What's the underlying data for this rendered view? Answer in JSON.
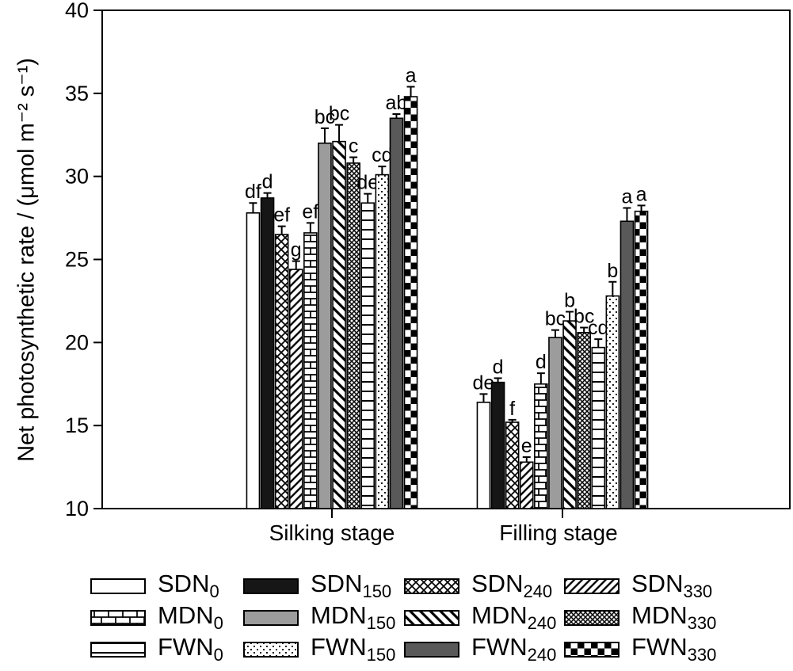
{
  "chart_data": {
    "type": "bar",
    "title": "",
    "xlabel": "",
    "ylabel": "Net photosynthetic rate / (μmol m⁻² s⁻¹)",
    "ylim": [
      10,
      40
    ],
    "yticks": [
      10,
      15,
      20,
      25,
      30,
      35,
      40
    ],
    "grid": false,
    "legend_position": "bottom",
    "groups": [
      "Silking stage",
      "Filling stage"
    ],
    "colors": {
      "black": "#161616",
      "gray": "#9c9c9c",
      "dark_gray": "#595959",
      "stroke": "#000000"
    },
    "series": [
      {
        "name": "SDN",
        "sub": "0",
        "pattern": "white",
        "values": [
          27.8,
          16.4
        ],
        "errors": [
          0.6,
          0.5
        ],
        "letters": [
          "df",
          "de"
        ]
      },
      {
        "name": "SDN",
        "sub": "150",
        "pattern": "black",
        "values": [
          28.7,
          17.6
        ],
        "errors": [
          0.3,
          0.25
        ],
        "letters": [
          "d",
          "d"
        ]
      },
      {
        "name": "SDN",
        "sub": "240",
        "pattern": "diamond-crosshatch",
        "values": [
          26.5,
          15.2
        ],
        "errors": [
          0.5,
          0.15
        ],
        "letters": [
          "ef",
          "f"
        ]
      },
      {
        "name": "SDN",
        "sub": "330",
        "pattern": "diagonal",
        "values": [
          24.4,
          12.8
        ],
        "errors": [
          0.5,
          0.3
        ],
        "letters": [
          "g",
          "e"
        ]
      },
      {
        "name": "MDN",
        "sub": "0",
        "pattern": "brick",
        "values": [
          26.6,
          17.5
        ],
        "errors": [
          0.6,
          0.65
        ],
        "letters": [
          "ef",
          "d"
        ]
      },
      {
        "name": "MDN",
        "sub": "150",
        "pattern": "gray",
        "values": [
          32.0,
          20.3
        ],
        "errors": [
          0.9,
          0.45
        ],
        "letters": [
          "bc",
          "bc"
        ]
      },
      {
        "name": "MDN",
        "sub": "240",
        "pattern": "back-diagonal",
        "values": [
          32.1,
          21.3
        ],
        "errors": [
          1.0,
          0.55
        ],
        "letters": [
          "bc",
          "b"
        ]
      },
      {
        "name": "MDN",
        "sub": "330",
        "pattern": "dense-crosshatch",
        "values": [
          30.8,
          20.6
        ],
        "errors": [
          0.35,
          0.3
        ],
        "letters": [
          "c",
          "bc"
        ]
      },
      {
        "name": "FWN",
        "sub": "0",
        "pattern": "horizontal-lines",
        "values": [
          28.4,
          19.7
        ],
        "errors": [
          0.55,
          0.5
        ],
        "letters": [
          "de",
          "cd"
        ]
      },
      {
        "name": "FWN",
        "sub": "150",
        "pattern": "dots",
        "values": [
          30.1,
          22.8
        ],
        "errors": [
          0.5,
          0.85
        ],
        "letters": [
          "cd",
          "b"
        ]
      },
      {
        "name": "FWN",
        "sub": "240",
        "pattern": "dark-gray",
        "values": [
          33.5,
          27.3
        ],
        "errors": [
          0.25,
          0.8
        ],
        "letters": [
          "ab",
          "a"
        ]
      },
      {
        "name": "FWN",
        "sub": "330",
        "pattern": "checker",
        "values": [
          34.8,
          27.9
        ],
        "errors": [
          0.6,
          0.35
        ],
        "letters": [
          "a",
          "a"
        ]
      }
    ]
  }
}
